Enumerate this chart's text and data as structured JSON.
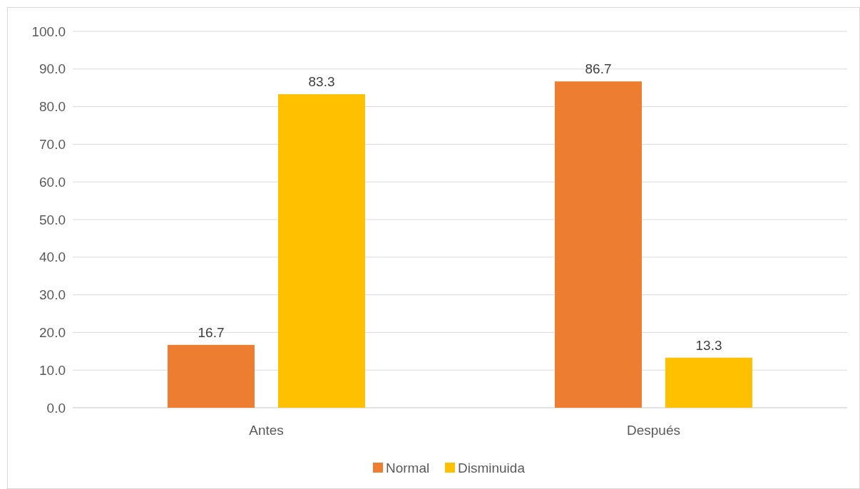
{
  "chart_data": {
    "type": "bar",
    "categories": [
      "Antes",
      "Después"
    ],
    "series": [
      {
        "name": "Normal",
        "color": "#ed7d31",
        "values": [
          16.7,
          86.7
        ]
      },
      {
        "name": "Disminuida",
        "color": "#ffc000",
        "values": [
          83.3,
          13.3
        ]
      }
    ],
    "ylim": [
      0,
      100
    ],
    "yticks": [
      {
        "value": 0,
        "label": "0.0"
      },
      {
        "value": 10,
        "label": "10.0"
      },
      {
        "value": 20,
        "label": "20.0"
      },
      {
        "value": 30,
        "label": "30.0"
      },
      {
        "value": 40,
        "label": "40.0"
      },
      {
        "value": 50,
        "label": "50.0"
      },
      {
        "value": 60,
        "label": "60.0"
      },
      {
        "value": 70,
        "label": "70.0"
      },
      {
        "value": 80,
        "label": "80.0"
      },
      {
        "value": 90,
        "label": "90.0"
      },
      {
        "value": 100,
        "label": "100.0"
      }
    ],
    "grid": "y",
    "legend": "bottom",
    "data_labels": true
  }
}
